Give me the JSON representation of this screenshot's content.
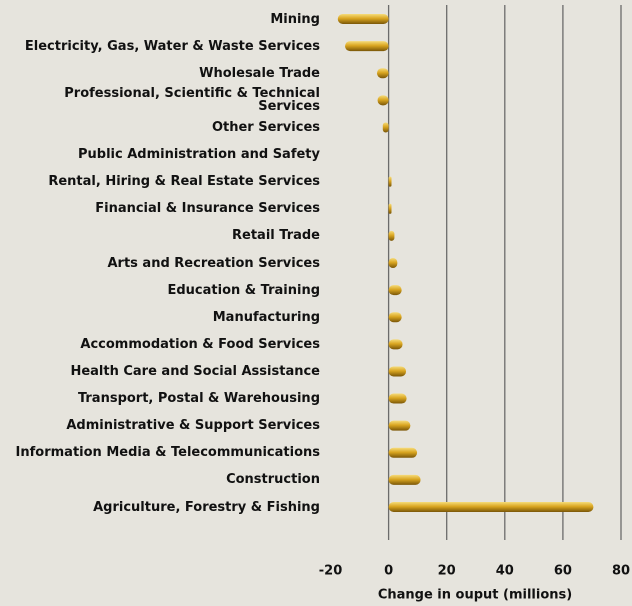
{
  "chart_data": {
    "type": "bar",
    "orientation": "horizontal",
    "categories": [
      "Mining",
      "Electricity, Gas, Water & Waste Services",
      "Wholesale Trade",
      "Professional, Scientific & Technical Services",
      "Other Services",
      "Public Administration and Safety",
      "Rental, Hiring & Real Estate Services",
      "Financial & Insurance Services",
      "Retail Trade",
      "Arts and Recreation Services",
      "Education & Training",
      "Manufacturing",
      "Accommodation & Food Services",
      "Health Care and Social Assistance",
      "Transport, Postal & Warehousing",
      "Administrative & Support Services",
      "Information Media & Telecommunications",
      "Construction",
      "Agriculture, Forestry & Fishing"
    ],
    "values": [
      -17.5,
      -15,
      -4,
      -3.8,
      -2,
      0,
      1,
      1,
      2,
      3,
      4.5,
      4.5,
      4.8,
      6,
      6.2,
      7.5,
      9.8,
      11,
      70.5
    ],
    "color": "#d9a520",
    "x_label": "Change in ouput (millions)",
    "xlim": [
      -20,
      80
    ],
    "xticks": [
      -20,
      0,
      20,
      40,
      60,
      80
    ],
    "grid": true
  }
}
